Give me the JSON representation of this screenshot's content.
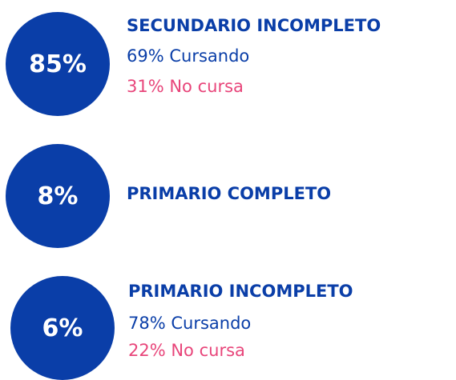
{
  "items": [
    {
      "value": "85%",
      "title": "SECUNDARIO INCOMPLETO",
      "details": [
        "69% Cursando",
        "31% No cursa"
      ]
    },
    {
      "value": "8%",
      "title": "PRIMARIO COMPLETO",
      "details": []
    },
    {
      "value": "6%",
      "title": "PRIMARIO INCOMPLETO",
      "details": [
        "78% Cursando",
        "22% No cursa"
      ]
    }
  ]
}
